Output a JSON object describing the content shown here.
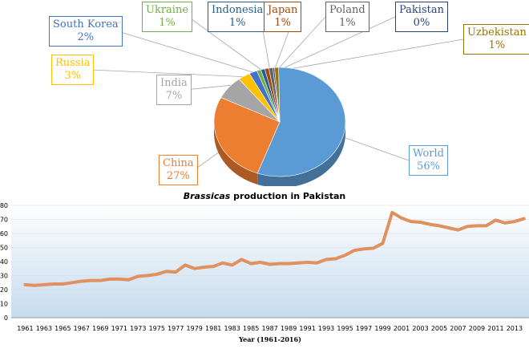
{
  "chart_data": [
    {
      "type": "pie",
      "title": "",
      "slices": [
        {
          "label": "World",
          "pct_label": "56%",
          "value": 56,
          "color": "#5b9bd5"
        },
        {
          "label": "China",
          "pct_label": "27%",
          "value": 27,
          "color": "#ed7d31"
        },
        {
          "label": "India",
          "pct_label": "7%",
          "value": 7,
          "color": "#a5a5a5"
        },
        {
          "label": "Russia",
          "pct_label": "3%",
          "value": 3,
          "color": "#ffc000"
        },
        {
          "label": "South Korea",
          "pct_label": "2%",
          "value": 2,
          "color": "#4472c4"
        },
        {
          "label": "Ukraine",
          "pct_label": "1%",
          "value": 1,
          "color": "#70ad47"
        },
        {
          "label": "Indonesia",
          "pct_label": "1%",
          "value": 1,
          "color": "#255e91"
        },
        {
          "label": "Japan",
          "pct_label": "1%",
          "value": 1,
          "color": "#9e480e"
        },
        {
          "label": "Poland",
          "pct_label": "1%",
          "value": 1,
          "color": "#636363"
        },
        {
          "label": "Pakistan",
          "pct_label": "0%",
          "value": 0.4,
          "color": "#264478"
        },
        {
          "label": "Uzbekistan",
          "pct_label": "1%",
          "value": 1,
          "color": "#997300"
        }
      ]
    },
    {
      "type": "line",
      "title_italic": "Brassicas",
      "title_rest": " production in Pakistan",
      "xlabel": "Year (1961-2016)",
      "ylabel": "",
      "ylim": [
        0,
        80
      ],
      "yticks": [
        0,
        10,
        20,
        30,
        40,
        50,
        60,
        70,
        80
      ],
      "xticks": [
        1961,
        1963,
        1965,
        1967,
        1969,
        1971,
        1973,
        1975,
        1977,
        1979,
        1981,
        1983,
        1985,
        1987,
        1989,
        1991,
        1993,
        1995,
        1997,
        1999,
        2001,
        2003,
        2005,
        2007,
        2009,
        2011,
        2013
      ],
      "line_color": "#e0915f",
      "x": [
        1961,
        1962,
        1963,
        1964,
        1965,
        1966,
        1967,
        1968,
        1969,
        1970,
        1971,
        1972,
        1973,
        1974,
        1975,
        1976,
        1977,
        1978,
        1979,
        1980,
        1981,
        1982,
        1983,
        1984,
        1985,
        1986,
        1987,
        1988,
        1989,
        1990,
        1991,
        1992,
        1993,
        1994,
        1995,
        1996,
        1997,
        1998,
        1999,
        2000,
        2001,
        2002,
        2003,
        2004,
        2005,
        2006,
        2007,
        2008,
        2009,
        2010,
        2011,
        2012,
        2013,
        2014
      ],
      "values": [
        23.5,
        23,
        23.5,
        24,
        24,
        25,
        26,
        26.5,
        26.5,
        27.5,
        27.5,
        27,
        29.5,
        30,
        31,
        33,
        32.5,
        37.5,
        35,
        36,
        36.5,
        39,
        37.5,
        41.5,
        38.5,
        39.5,
        38,
        38.5,
        38.5,
        39,
        39.5,
        39,
        41.5,
        42,
        44.5,
        48,
        49,
        49.5,
        53,
        75,
        71,
        68.5,
        68,
        66.5,
        65.5,
        64,
        62.5,
        65,
        65.5,
        65.5,
        69.5,
        67.5,
        68.5,
        70.5
      ]
    }
  ]
}
